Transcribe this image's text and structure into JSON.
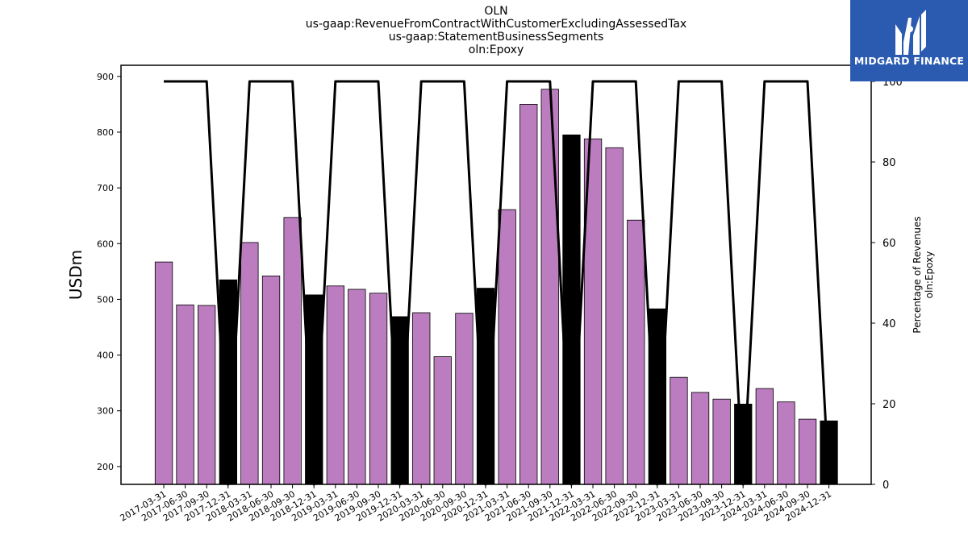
{
  "title_lines": [
    "OLN",
    "us-gaap:RevenueFromContractWithCustomerExcludingAssessedTax",
    "us-gaap:StatementBusinessSegments",
    "oln:Epoxy"
  ],
  "logo": {
    "text": "MIDGARD FINANCE",
    "bg_color": "#2b5bb0"
  },
  "chart_data": {
    "type": "bar",
    "categories": [
      "2017-03-31",
      "2017-06-30",
      "2017-09-30",
      "2017-12-31",
      "2018-03-31",
      "2018-06-30",
      "2018-09-30",
      "2018-12-31",
      "2019-03-31",
      "2019-06-30",
      "2019-09-30",
      "2019-12-31",
      "2020-03-31",
      "2020-06-30",
      "2020-09-30",
      "2020-12-31",
      "2021-03-31",
      "2021-06-30",
      "2021-09-30",
      "2021-12-31",
      "2022-03-31",
      "2022-06-30",
      "2022-09-30",
      "2022-12-31",
      "2023-03-31",
      "2023-06-30",
      "2023-09-30",
      "2023-12-31",
      "2024-03-31",
      "2024-06-30",
      "2024-09-30",
      "2024-12-31"
    ],
    "series": [
      {
        "axis": "left",
        "values": [
          567,
          490,
          489,
          535,
          602,
          542,
          647,
          508,
          524,
          518,
          511,
          469,
          476,
          397,
          475,
          520,
          661,
          850,
          877,
          795,
          788,
          772,
          642,
          483,
          360,
          333,
          321,
          312,
          340,
          316,
          285,
          282
        ],
        "colors": [
          "#bb7dbf",
          "#bb7dbf",
          "#bb7dbf",
          "#000000",
          "#bb7dbf",
          "#bb7dbf",
          "#bb7dbf",
          "#000000",
          "#bb7dbf",
          "#bb7dbf",
          "#bb7dbf",
          "#000000",
          "#bb7dbf",
          "#bb7dbf",
          "#bb7dbf",
          "#000000",
          "#bb7dbf",
          "#bb7dbf",
          "#bb7dbf",
          "#000000",
          "#bb7dbf",
          "#bb7dbf",
          "#bb7dbf",
          "#000000",
          "#bb7dbf",
          "#bb7dbf",
          "#bb7dbf",
          "#000000",
          "#bb7dbf",
          "#bb7dbf",
          "#bb7dbf",
          "#000000"
        ]
      },
      {
        "axis": "right",
        "type": "line",
        "color": "#000000",
        "values": [
          100,
          100,
          100,
          0,
          100,
          100,
          100,
          0,
          100,
          100,
          100,
          0,
          100,
          100,
          100,
          0,
          100,
          100,
          100,
          0,
          100,
          100,
          100,
          0,
          100,
          100,
          100,
          0,
          100,
          100,
          100,
          0
        ]
      }
    ],
    "ylabel": "USDm",
    "y2label_lines": [
      "Percentage of Revenues",
      "oln:Epoxy"
    ],
    "ylim": [
      168,
      920
    ],
    "yticks": [
      200,
      300,
      400,
      500,
      600,
      700,
      800,
      900
    ],
    "y2lim": [
      0,
      104
    ],
    "y2ticks": [
      0,
      20,
      40,
      60,
      80,
      100
    ],
    "grid": false,
    "legend": "none"
  }
}
